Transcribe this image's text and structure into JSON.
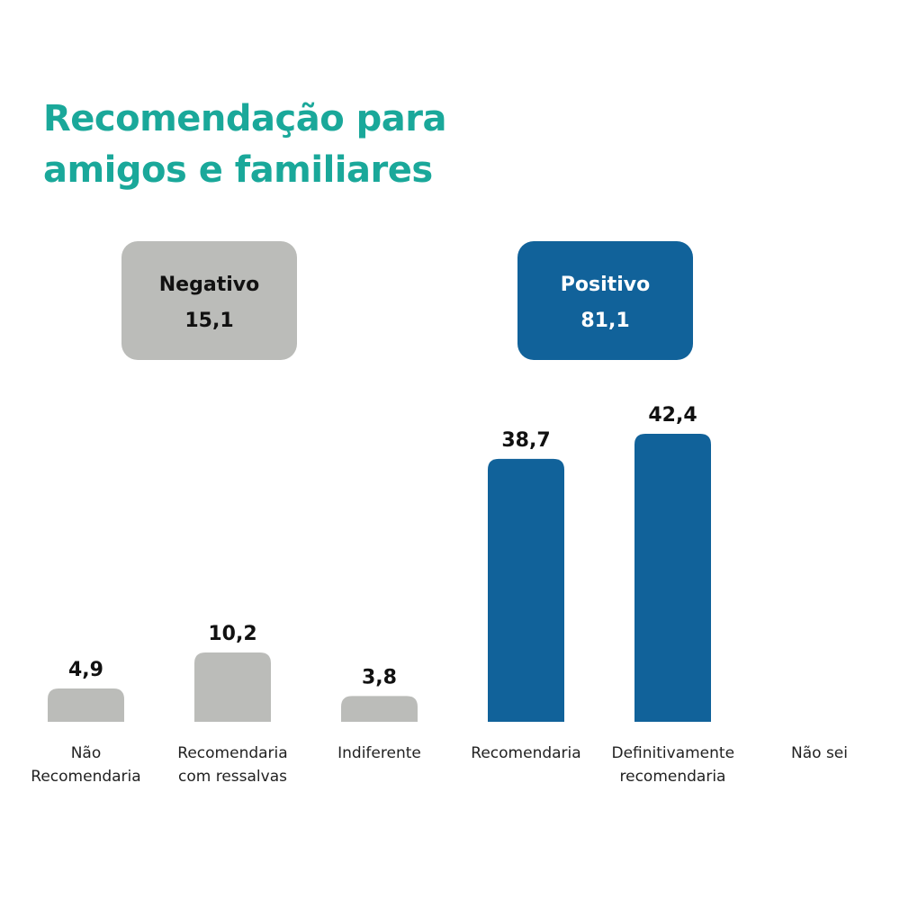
{
  "chart_data": {
    "type": "bar",
    "title": "Recomendação para amigos e familiares",
    "categories": [
      "Não Recomendaria",
      "Recomendaria com ressalvas",
      "Indiferente",
      "Recomendaria",
      "Definitivamente recomendaria",
      "Não sei"
    ],
    "values": [
      4.9,
      10.2,
      3.8,
      38.7,
      42.4,
      null
    ],
    "value_labels": [
      "4,9",
      "10,2",
      "3,8",
      "38,7",
      "42,4",
      null
    ],
    "colors": [
      "#bbbcb9",
      "#bbbcb9",
      "#bbbcb9",
      "#11629a",
      "#11629a",
      null
    ],
    "groups": [
      {
        "name": "Negativo",
        "value": 15.1,
        "value_label": "15,1",
        "color": "#bbbcb9",
        "text_color": "#111111"
      },
      {
        "name": "Positivo",
        "value": 81.1,
        "value_label": "81,1",
        "color": "#11629a",
        "text_color": "#ffffff"
      }
    ]
  }
}
